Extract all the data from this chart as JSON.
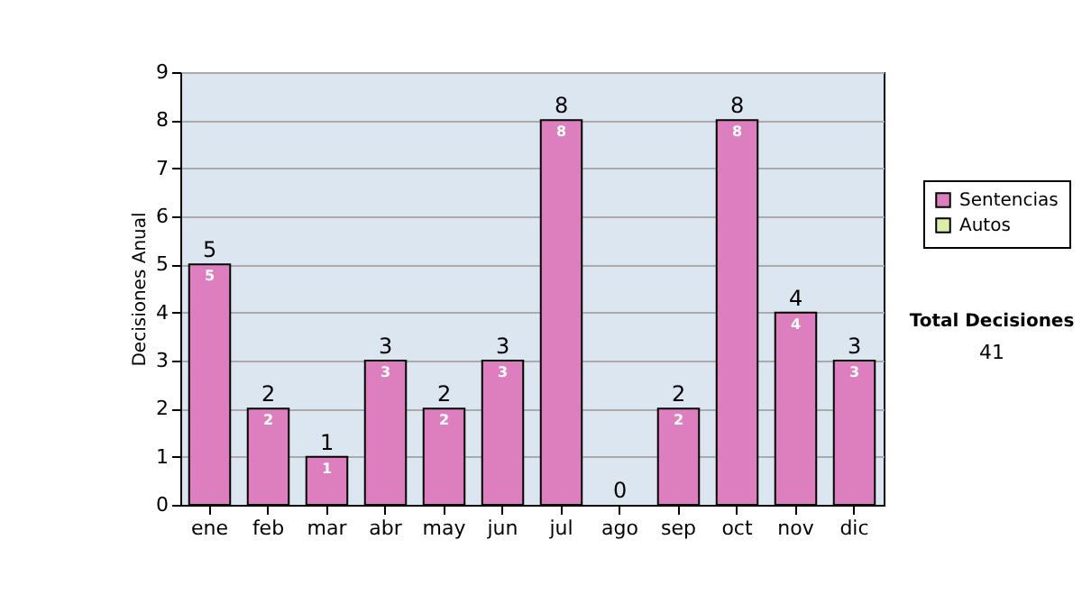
{
  "chart_data": {
    "type": "bar",
    "stacked": true,
    "ylabel": "Decisiones Anual",
    "categories": [
      "ene",
      "feb",
      "mar",
      "abr",
      "may",
      "jun",
      "jul",
      "ago",
      "sep",
      "oct",
      "nov",
      "dic"
    ],
    "series": [
      {
        "name": "Sentencias",
        "color": "#dd7fbf",
        "values": [
          5,
          2,
          1,
          3,
          2,
          3,
          8,
          0,
          2,
          8,
          4,
          3
        ],
        "value_labels": [
          "5",
          "2",
          "1",
          "3",
          "2",
          "3",
          "8",
          null,
          "2",
          "8",
          "4",
          "3"
        ]
      },
      {
        "name": "Autos",
        "color": "#ddeea8",
        "values": [
          0,
          0,
          0,
          0,
          0,
          0,
          0,
          0,
          0,
          0,
          0,
          0
        ]
      }
    ],
    "totals": [
      "5",
      "2",
      "1",
      "3",
      "2",
      "3",
      "8",
      "0",
      "2",
      "8",
      "4",
      "3"
    ],
    "ylim": [
      0,
      9
    ],
    "yticks": [
      0,
      1,
      2,
      3,
      4,
      5,
      6,
      7,
      8,
      9
    ],
    "grid": "y",
    "legend": "right",
    "annotations": [
      "Total Decisiones",
      "41"
    ]
  }
}
